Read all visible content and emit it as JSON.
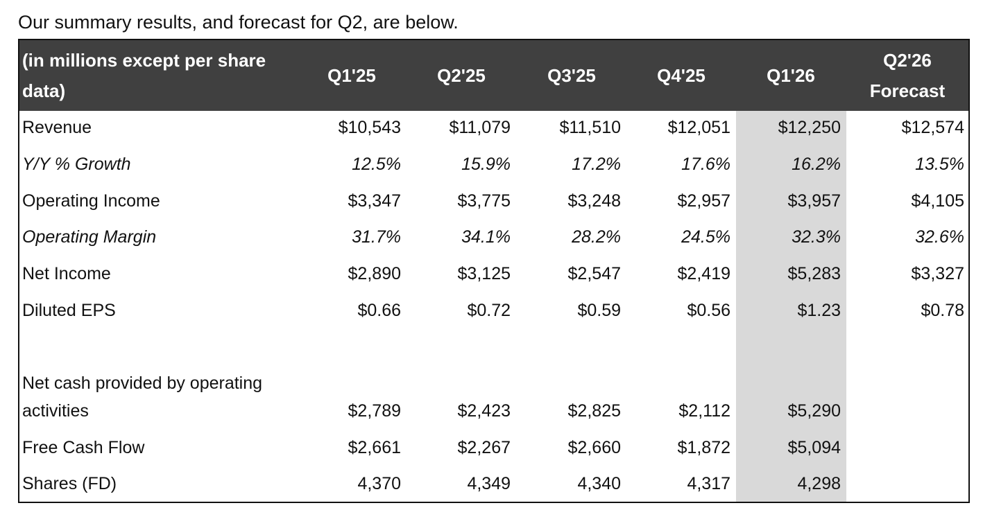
{
  "intro_text": "Our summary results, and forecast for Q2, are below.",
  "header": {
    "label_line1": "(in millions except per share",
    "label_line2": "data)",
    "columns": [
      "Q1'25",
      "Q2'25",
      "Q3'25",
      "Q4'25",
      "Q1'26"
    ],
    "forecast_line1": "Q2'26",
    "forecast_line2": "Forecast"
  },
  "colors": {
    "header_bg": "#404040",
    "highlight_col": "#d9d9d9"
  },
  "rows": [
    {
      "label": "Revenue",
      "values": [
        "$10,543",
        "$11,079",
        "$11,510",
        "$12,051",
        "$12,250",
        "$12,574"
      ]
    },
    {
      "label": "Y/Y % Growth",
      "values": [
        "12.5%",
        "15.9%",
        "17.2%",
        "17.6%",
        "16.2%",
        "13.5%"
      ]
    },
    {
      "label": "Operating Income",
      "values": [
        "$3,347",
        "$3,775",
        "$3,248",
        "$2,957",
        "$3,957",
        "$4,105"
      ]
    },
    {
      "label": "Operating Margin",
      "values": [
        "31.7%",
        "34.1%",
        "28.2%",
        "24.5%",
        "32.3%",
        "32.6%"
      ]
    },
    {
      "label": "Net Income",
      "values": [
        "$2,890",
        "$3,125",
        "$2,547",
        "$2,419",
        "$5,283",
        "$3,327"
      ]
    },
    {
      "label": "Diluted EPS",
      "values": [
        "$0.66",
        "$0.72",
        "$0.59",
        "$0.56",
        "$1.23",
        "$0.78"
      ]
    }
  ],
  "cash_rows": [
    {
      "label_line1": "Net cash provided by operating",
      "label_line2": "activities",
      "values": [
        "$2,789",
        "$2,423",
        "$2,825",
        "$2,112",
        "$5,290"
      ]
    },
    {
      "label": "Free Cash Flow",
      "values": [
        "$2,661",
        "$2,267",
        "$2,660",
        "$1,872",
        "$5,094"
      ]
    },
    {
      "label": "Shares (FD)",
      "values": [
        "4,370",
        "4,349",
        "4,340",
        "4,317",
        "4,298"
      ]
    }
  ]
}
